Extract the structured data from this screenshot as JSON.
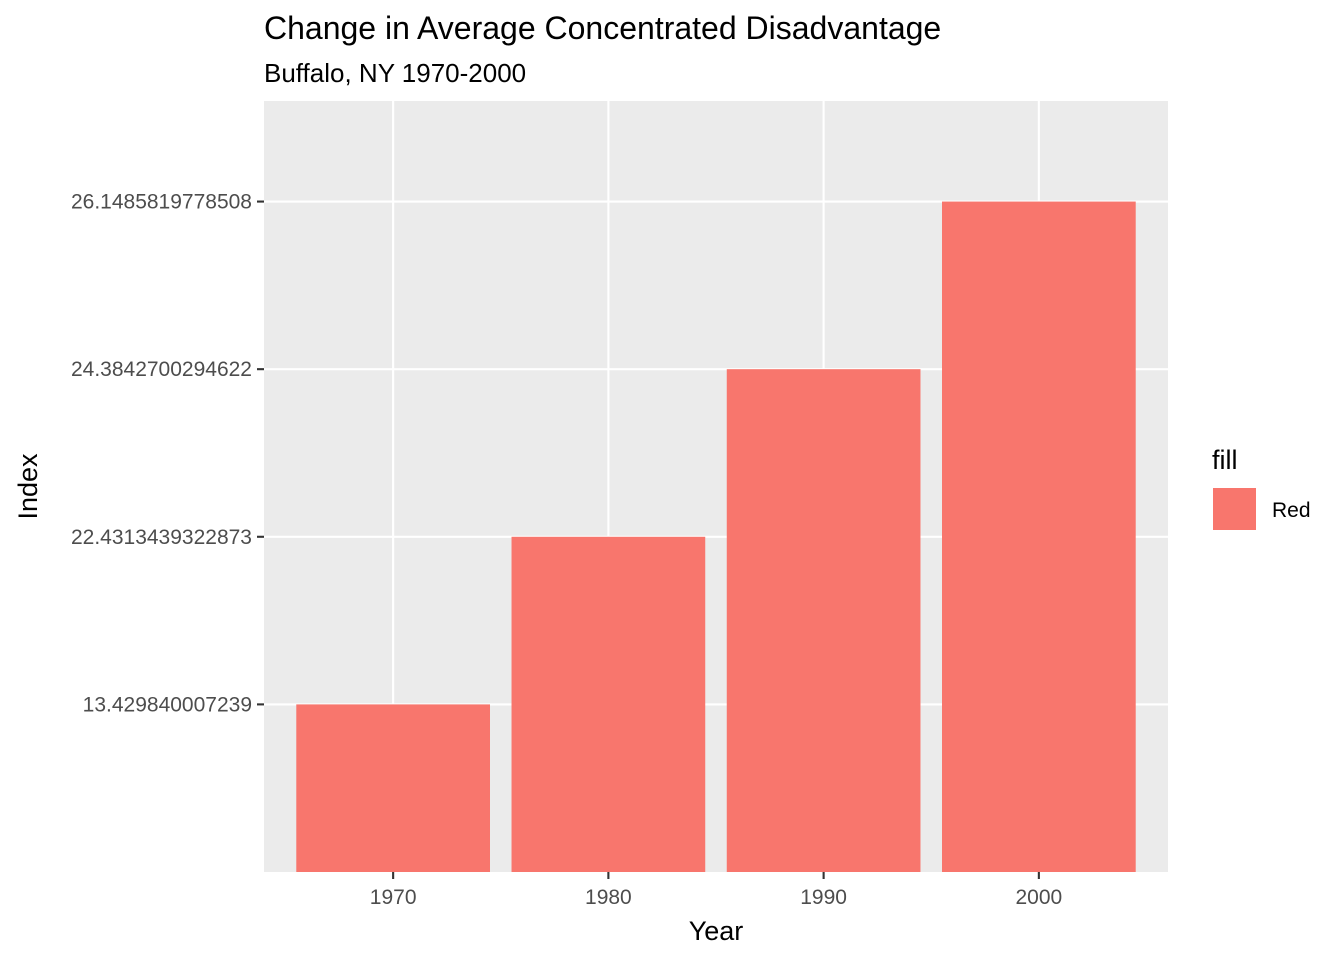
{
  "chart_data": {
    "type": "bar",
    "title": "Change in Average Concentrated Disadvantage",
    "subtitle": "Buffalo, NY 1970-2000",
    "xlabel": "Year",
    "ylabel": "Index",
    "categories": [
      "1970",
      "1980",
      "1990",
      "2000"
    ],
    "y_scale": "discrete",
    "y_ticks": [
      "13.429840007239",
      "22.4313439322873",
      "24.3842700294622",
      "26.1485819778508"
    ],
    "series": [
      {
        "name": "Red",
        "values": [
          "13.429840007239",
          "22.4313439322873",
          "24.3842700294622",
          "26.1485819778508"
        ],
        "color": "#F8766D"
      }
    ],
    "legend": {
      "title": "fill",
      "position": "right",
      "entries": [
        {
          "label": "Red",
          "color": "#F8766D"
        }
      ]
    },
    "grid": true,
    "panel_background": "#EBEBEB",
    "grid_color": "#FFFFFF"
  }
}
